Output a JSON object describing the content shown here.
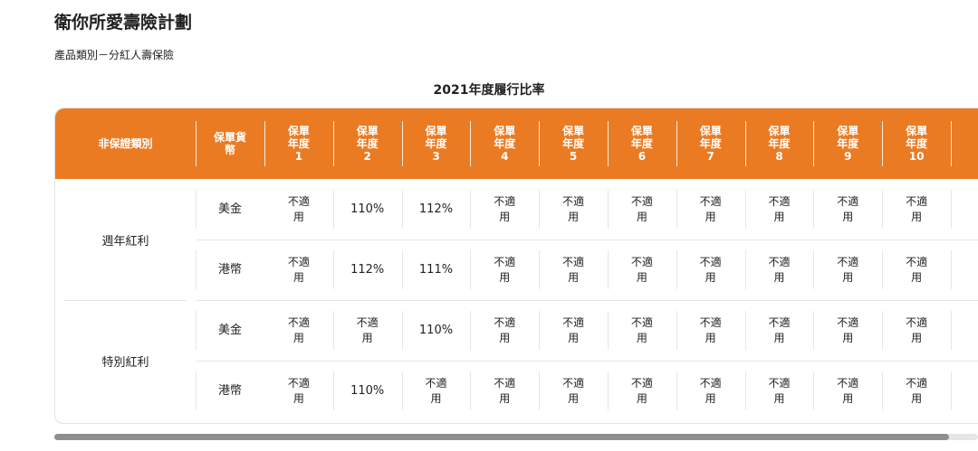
{
  "page": {
    "title": "衛你所愛壽險計劃",
    "subtitle": "產品類別－分紅人壽保險",
    "table_heading": "2021年度履行比率"
  },
  "table": {
    "headers": {
      "category": "非保證類別",
      "currency_line1": "保單貨",
      "currency_line2": "幣",
      "year_line1": "保單",
      "year_line2": "年度",
      "years": [
        "1",
        "2",
        "3",
        "4",
        "5",
        "6",
        "7",
        "8",
        "9",
        "10"
      ]
    },
    "groups": [
      {
        "label": "週年紅利",
        "rows": [
          {
            "currency": "美金",
            "cells": [
              "不適用",
              "110%",
              "112%",
              "不適用",
              "不適用",
              "不適用",
              "不適用",
              "不適用",
              "不適用",
              "不適用"
            ]
          },
          {
            "currency": "港幣",
            "cells": [
              "不適用",
              "112%",
              "111%",
              "不適用",
              "不適用",
              "不適用",
              "不適用",
              "不適用",
              "不適用",
              "不適用"
            ]
          }
        ]
      },
      {
        "label": "特別紅利",
        "rows": [
          {
            "currency": "美金",
            "cells": [
              "不適用",
              "不適用",
              "110%",
              "不適用",
              "不適用",
              "不適用",
              "不適用",
              "不適用",
              "不適用",
              "不適用"
            ]
          },
          {
            "currency": "港幣",
            "cells": [
              "不適用",
              "110%",
              "不適用",
              "不適用",
              "不適用",
              "不適用",
              "不適用",
              "不適用",
              "不適用",
              "不適用"
            ]
          }
        ]
      }
    ]
  },
  "colors": {
    "header_bg": "#ea7b23",
    "header_text": "#ffffff",
    "scroll_thumb": "#8f8f8f"
  },
  "scroll": {
    "visible_fraction": 0.97
  }
}
